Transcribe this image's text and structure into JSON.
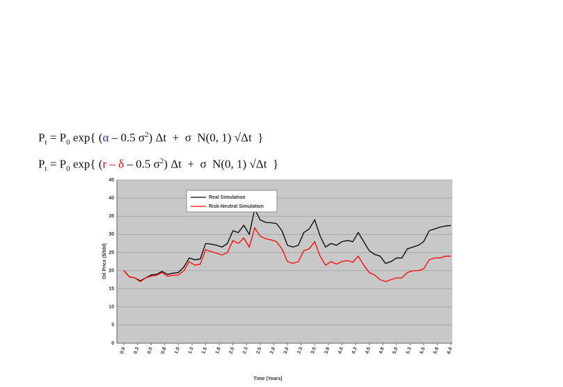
{
  "formulas": [
    [
      "P",
      "t",
      " = P",
      "0",
      " exp{ (",
      "α",
      " – 0.5 σ",
      "2",
      ") Δt  +  σ  N(0, 1) √Δt  }"
    ],
    [
      "P",
      "t",
      " = P",
      "0",
      " exp{ (",
      "r – δ",
      " – 0.5 σ",
      "2",
      ") Δt  +  σ  N(0, 1) √Δt  }"
    ]
  ],
  "chart_data": {
    "type": "line",
    "x_label": "Time (Years)",
    "y_label": "Oil Price ($/bbl)",
    "x": [
      0,
      0.1,
      0.2,
      0.3,
      0.4,
      0.5,
      0.6,
      0.7,
      0.8,
      0.9,
      1,
      1.1,
      1.2,
      1.3,
      1.4,
      1.5,
      1.6,
      1.7,
      1.8,
      1.9,
      2,
      2.1,
      2.2,
      2.3,
      2.4,
      2.5,
      2.6,
      2.7,
      2.8,
      2.9,
      3,
      3.1,
      3.2,
      3.3,
      3.4,
      3.5,
      3.6,
      3.7,
      3.8,
      3.9,
      4,
      4.1,
      4.2,
      4.3,
      4.4,
      4.5,
      4.6,
      4.7,
      4.8,
      4.9,
      5,
      5.1,
      5.2,
      5.3,
      5.4,
      5.5,
      5.6,
      5.7,
      5.8,
      5.9,
      6
    ],
    "series": [
      {
        "name": "Real Simulation",
        "color": "#000000",
        "values": [
          20,
          18.3,
          18,
          17.2,
          18,
          18.8,
          19,
          19.8,
          19,
          19.3,
          19.5,
          21,
          23.5,
          23,
          23.2,
          27.5,
          27.3,
          27,
          26.5,
          27.5,
          31,
          30.5,
          32.5,
          30,
          37,
          34,
          33.3,
          33.2,
          33,
          31,
          27,
          26.5,
          27,
          30.5,
          31.5,
          34,
          29.5,
          26.5,
          27.5,
          27,
          28,
          28.3,
          28,
          30.5,
          28,
          25.5,
          24.5,
          24,
          22,
          22.5,
          23.5,
          23.5,
          26,
          26.5,
          27,
          28,
          31,
          31.5,
          32,
          32.3,
          32.5
        ]
      },
      {
        "name": "Risk-Neutral Simulation",
        "color": "#ff0000",
        "values": [
          20,
          18.3,
          18,
          17,
          18,
          18.5,
          18.7,
          19.5,
          18.5,
          18.7,
          18.8,
          20,
          22.5,
          21.5,
          21.8,
          25.8,
          25.3,
          24.8,
          24.3,
          25,
          28.3,
          27.5,
          29,
          26.5,
          31.8,
          29.5,
          28.8,
          28.5,
          28,
          26,
          22.5,
          22,
          22.5,
          25.5,
          26,
          28,
          24,
          21.5,
          22.5,
          21.8,
          22.5,
          22.8,
          22.3,
          24,
          21.5,
          19.5,
          18.8,
          17.5,
          17,
          17.5,
          18,
          18,
          19.5,
          20,
          20,
          20.5,
          23,
          23.5,
          23.5,
          24,
          24
        ]
      }
    ],
    "xlim": [
      0,
      6
    ],
    "xticks": [
      {
        "value": 0,
        "label": "0.0"
      },
      {
        "value": 0.25,
        "label": "0.3"
      },
      {
        "value": 0.5,
        "label": "0.5"
      },
      {
        "value": 0.75,
        "label": "0.8"
      },
      {
        "value": 1,
        "label": "1.0"
      },
      {
        "value": 1.25,
        "label": "1.3"
      },
      {
        "value": 1.5,
        "label": "1.5"
      },
      {
        "value": 1.75,
        "label": "1.8"
      },
      {
        "value": 2,
        "label": "2.0"
      },
      {
        "value": 2.25,
        "label": "2.3"
      },
      {
        "value": 2.5,
        "label": "2.5"
      },
      {
        "value": 2.75,
        "label": "2.8"
      },
      {
        "value": 3,
        "label": "3.0"
      },
      {
        "value": 3.25,
        "label": "3.3"
      },
      {
        "value": 3.5,
        "label": "3.5"
      },
      {
        "value": 3.75,
        "label": "3.8"
      },
      {
        "value": 4,
        "label": "4.0"
      },
      {
        "value": 4.25,
        "label": "4.3"
      },
      {
        "value": 4.5,
        "label": "4.5"
      },
      {
        "value": 4.75,
        "label": "4.8"
      },
      {
        "value": 5,
        "label": "5.0"
      },
      {
        "value": 5.25,
        "label": "5.3"
      },
      {
        "value": 5.5,
        "label": "5.5"
      },
      {
        "value": 5.75,
        "label": "5.8"
      },
      {
        "value": 6,
        "label": "6.0"
      }
    ],
    "ylim": [
      0,
      45
    ],
    "yticks": [
      0,
      5,
      10,
      15,
      20,
      25,
      30,
      35,
      40,
      45
    ],
    "grid": true
  }
}
